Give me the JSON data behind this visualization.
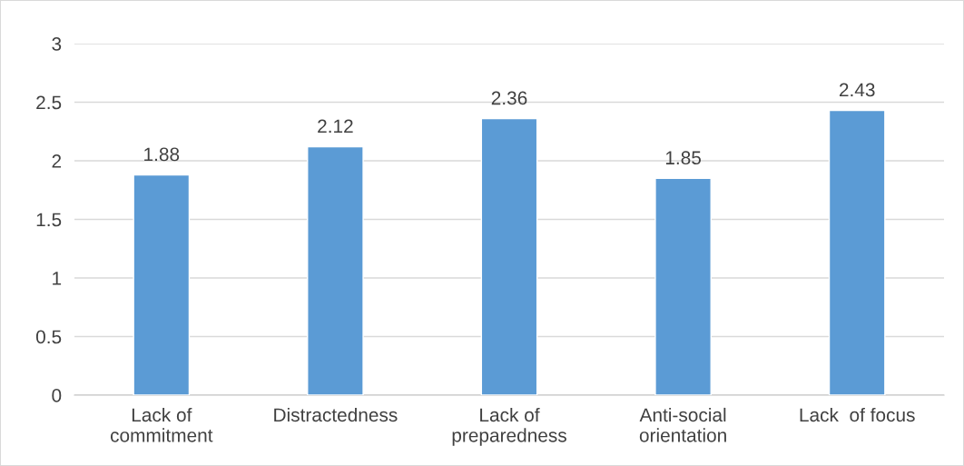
{
  "chart_data": {
    "type": "bar",
    "categories": [
      "Lack of\ncommitment",
      "Distractedness",
      "Lack of\npreparedness",
      "Anti-social\norientation",
      "Lack  of focus"
    ],
    "values": [
      1.88,
      2.12,
      2.36,
      1.85,
      2.43
    ],
    "color": "#5b9bd5",
    "ylim": [
      0,
      3
    ],
    "yticks": [
      0,
      0.5,
      1,
      1.5,
      2,
      2.5,
      3
    ],
    "grid": "y",
    "data_labels": true,
    "legend": false
  }
}
